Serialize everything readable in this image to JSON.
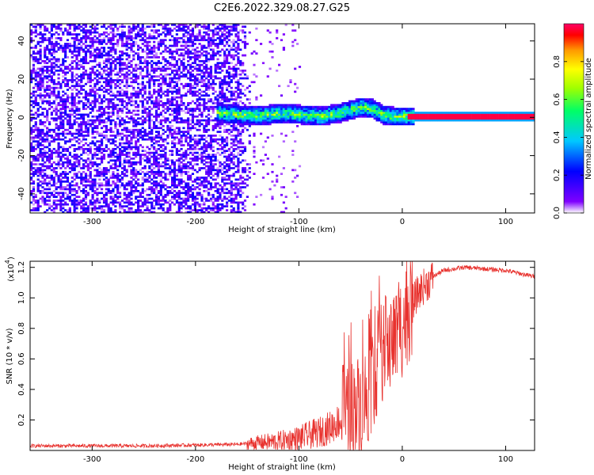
{
  "figure": {
    "title": "C2E6.2022.329.08.27.G25"
  },
  "chart_data": [
    {
      "type": "heatmap",
      "xlabel": "Height of straight line (km)",
      "ylabel": "Frequency (Hz)",
      "xlim": [
        -360,
        128
      ],
      "ylim": [
        -50,
        49
      ],
      "xticks": [
        -300,
        -200,
        -100,
        0,
        100
      ],
      "xtick_labels": [
        "-300",
        "-200",
        "-100",
        "0",
        "100"
      ],
      "yticks": [
        -40,
        -20,
        0,
        20,
        40
      ],
      "ytick_labels": [
        "-40",
        "-20",
        "0",
        "20",
        "40"
      ],
      "colorbar": {
        "label": "Normalized spectral amplitude",
        "range": [
          0.0,
          1.0
        ],
        "ticks": [
          0.0,
          0.2,
          0.4,
          0.6,
          0.8
        ],
        "tick_labels": [
          "0.0",
          "0.2",
          "0.4",
          "0.6",
          "0.8"
        ],
        "colormap": [
          "#ffffff",
          "#7f00ff",
          "#0000ff",
          "#00c8ff",
          "#00ff66",
          "#a0ff00",
          "#ffff00",
          "#ff9900",
          "#ff0000",
          "#ff0066"
        ]
      },
      "description_regions": [
        {
          "x_range": [
            -360,
            -150
          ],
          "freq_range": [
            -50,
            49
          ],
          "level": 0.1,
          "note": "broadband noise"
        },
        {
          "x_range": [
            -180,
            10
          ],
          "freq_center": [
            2,
            0
          ],
          "freq_halfwidth": 4,
          "level": 0.5
        },
        {
          "x_range": [
            0,
            128
          ],
          "freq_center": 0,
          "freq_halfwidth": 1.5,
          "level": 0.95
        }
      ],
      "ridge": {
        "x": [
          -180,
          -160,
          -140,
          -120,
          -100,
          -80,
          -60,
          -40,
          -30,
          -20,
          -10,
          0,
          20,
          60,
          100,
          128
        ],
        "freq": [
          2,
          1,
          0.5,
          1.5,
          1,
          0,
          2,
          5,
          4,
          1,
          0,
          0,
          0,
          0,
          0,
          0
        ]
      }
    },
    {
      "type": "line",
      "xlabel": "Height of straight line (km)",
      "ylabel": "SNR (10 * v/v)",
      "y_multiplier_label": "(x10",
      "y_multiplier_exp": "4",
      "y_multiplier_close": ")",
      "xlim": [
        -360,
        128
      ],
      "ylim": [
        0.0,
        1.24
      ],
      "xticks": [
        -300,
        -200,
        -100,
        0,
        100
      ],
      "xtick_labels": [
        "-300",
        "-200",
        "-100",
        "0",
        "100"
      ],
      "yticks": [
        0.2,
        0.4,
        0.6,
        0.8,
        1.0,
        1.2
      ],
      "ytick_labels": [
        "0.2",
        "0.4",
        "0.6",
        "0.8",
        "1.0",
        "1.2"
      ],
      "series": [
        {
          "color": "#e8322e",
          "x": [
            -360,
            -300,
            -250,
            -200,
            -160,
            -140,
            -120,
            -100,
            -80,
            -70,
            -60,
            -50,
            -40,
            -35,
            -30,
            -25,
            -20,
            -15,
            -10,
            -5,
            0,
            5,
            10,
            15,
            20,
            25,
            30,
            40,
            50,
            60,
            80,
            100,
            120,
            128
          ],
          "y": [
            0.03,
            0.03,
            0.03,
            0.035,
            0.04,
            0.05,
            0.06,
            0.08,
            0.12,
            0.15,
            0.2,
            0.25,
            0.3,
            0.35,
            0.45,
            0.55,
            0.65,
            0.68,
            0.72,
            0.75,
            0.82,
            0.9,
            0.97,
            1.03,
            1.07,
            1.1,
            1.14,
            1.18,
            1.19,
            1.2,
            1.19,
            1.18,
            1.15,
            1.14
          ]
        }
      ]
    }
  ]
}
